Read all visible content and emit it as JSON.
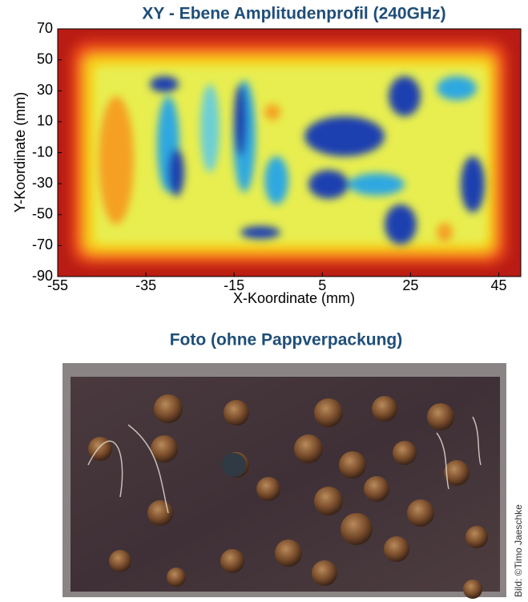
{
  "chart_data": {
    "type": "heatmap",
    "title": "XY - Ebene  Amplitudenprofil (240GHz)",
    "x_label": "X-Koordinate (mm)",
    "y_label": "Y-Koordinate (mm)",
    "xlim": [
      -55,
      50
    ],
    "xticks": [
      -55,
      -35,
      -15,
      5,
      25,
      45
    ],
    "ylim": [
      -90,
      70
    ],
    "yticks": [
      70,
      50,
      30,
      10,
      -10,
      -30,
      -50,
      -70,
      -90
    ]
  },
  "photo": {
    "title": "Foto (ohne Pappverpackung)",
    "credit": "Bild: ©Timo Jaeschke"
  }
}
